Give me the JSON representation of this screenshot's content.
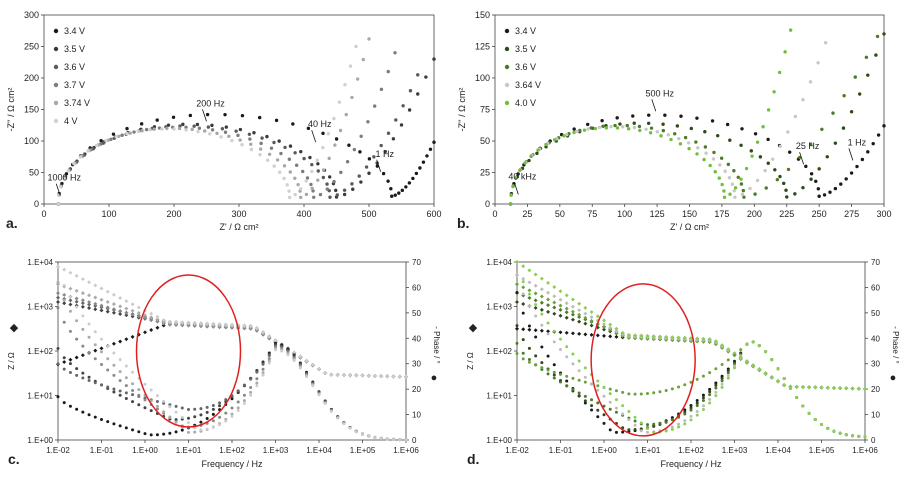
{
  "chart_data": [
    {
      "type": "scatter",
      "panel": "a",
      "panel_label": "a.",
      "xlabel": "Z' / Ω cm²",
      "ylabel": "-Z'' / Ω cm²",
      "xlim": [
        0,
        600
      ],
      "ylim": [
        0,
        300
      ],
      "xticks": [
        "0",
        "100",
        "200",
        "300",
        "400",
        "500",
        "600"
      ],
      "yticks": [
        "0",
        "50",
        "100",
        "150",
        "200",
        "250",
        "300"
      ],
      "legend": [
        {
          "label": "3.4 V",
          "color": "#1a1a1a"
        },
        {
          "label": "3.5 V",
          "color": "#3a3a3a"
        },
        {
          "label": "3.6 V",
          "color": "#5a5a5a"
        },
        {
          "label": "3.7 V",
          "color": "#7c7c7c"
        },
        {
          "label": "3.74 V",
          "color": "#a8a8a8"
        },
        {
          "label": "4 V",
          "color": "#d0d0d0"
        }
      ],
      "annotations": [
        {
          "text": "200 Hz",
          "x": 250,
          "y": 128
        },
        {
          "text": "40 Hz",
          "x": 418,
          "y": 95
        },
        {
          "text": "1 Hz",
          "x": 518,
          "y": 48
        },
        {
          "text": "1000 Hz",
          "x": 25,
          "y": 10
        }
      ],
      "series": [
        {
          "name": "3.4 V",
          "x0": 22,
          "x1": 535,
          "ymax": 155,
          "tail_end": [
            600,
            98
          ]
        },
        {
          "name": "3.5 V",
          "x0": 22,
          "x1": 450,
          "ymax": 138,
          "tail_end": [
            600,
            230
          ]
        },
        {
          "name": "3.6 V",
          "x0": 22,
          "x1": 440,
          "ymax": 135,
          "tail_end": [
            575,
            205
          ]
        },
        {
          "name": "3.7 V",
          "x0": 22,
          "x1": 415,
          "ymax": 133,
          "tail_end": [
            540,
            240
          ]
        },
        {
          "name": "3.74 V",
          "x0": 22,
          "x1": 395,
          "ymax": 131,
          "tail_end": [
            500,
            262
          ]
        },
        {
          "name": "4 V",
          "x0": 22,
          "x1": 378,
          "ymax": 130,
          "tail_end": [
            480,
            250
          ]
        }
      ]
    },
    {
      "type": "scatter",
      "panel": "b",
      "panel_label": "b.",
      "xlabel": "Z' / Ω cm²",
      "ylabel": "-Z'' / Ω cm²",
      "xlim": [
        0,
        300
      ],
      "ylim": [
        0,
        150
      ],
      "xticks": [
        "0",
        "25",
        "50",
        "75",
        "100",
        "125",
        "150",
        "175",
        "200",
        "225",
        "250",
        "275",
        "300"
      ],
      "yticks": [
        "0",
        "25",
        "50",
        "75",
        "100",
        "125",
        "150"
      ],
      "legend": [
        {
          "label": "3.4 V",
          "color": "#1a1a1a"
        },
        {
          "label": "3.5 V",
          "color": "#2e4a1a"
        },
        {
          "label": "3.6 V",
          "color": "#4e7a2a"
        },
        {
          "label": "3.64 V",
          "color": "#c8c8c8"
        },
        {
          "label": "4.0 V",
          "color": "#6fbf3a"
        }
      ],
      "annotations": [
        {
          "text": "500 Hz",
          "x": 124,
          "y": 72
        },
        {
          "text": "25 Hz",
          "x": 238,
          "y": 30
        },
        {
          "text": "1 Hz",
          "x": 276,
          "y": 33
        },
        {
          "text": "40 kHz",
          "x": 18,
          "y": 6
        }
      ],
      "series": [
        {
          "name": "3.4 V",
          "x0": 12,
          "x1": 250,
          "ymax": 77,
          "tail_end": [
            300,
            62
          ]
        },
        {
          "name": "3.5 V",
          "x0": 12,
          "x1": 225,
          "ymax": 70,
          "tail_end": [
            300,
            135
          ]
        },
        {
          "name": "3.6 V",
          "x0": 12,
          "x1": 192,
          "ymax": 68,
          "tail_end": [
            295,
            133
          ]
        },
        {
          "name": "3.64 V",
          "x0": 12,
          "x1": 185,
          "ymax": 67,
          "tail_end": [
            255,
            128
          ]
        },
        {
          "name": "4.0 V",
          "x0": 12,
          "x1": 177,
          "ymax": 66,
          "tail_end": [
            228,
            138
          ]
        }
      ]
    },
    {
      "type": "scatter",
      "panel": "c",
      "panel_label": "c.",
      "xlabel": "Frequency / Hz",
      "ylabel_left": "Z / Ω",
      "ylabel_right": "- Phase / °",
      "left_marker": "◆",
      "right_marker": "●",
      "xscale": "log",
      "xlim": [
        0.01,
        1000000
      ],
      "ylim_left": [
        1,
        10000
      ],
      "ylim_right": [
        0,
        70
      ],
      "xticks": [
        "1.E-02",
        "1.E-01",
        "1.E+00",
        "1.E+01",
        "1.E+02",
        "1.E+03",
        "1.E+04",
        "1.E+05",
        "1.E+06"
      ],
      "yticks_left": [
        "1.E+00",
        "1.E+01",
        "1.E+02",
        "1.E+03",
        "1.E+04"
      ],
      "yticks_right": [
        "0",
        "10",
        "20",
        "30",
        "40",
        "50",
        "60",
        "70"
      ],
      "highlight": {
        "shape": "ellipse",
        "color": "#e02020",
        "center_log_freq": 1.0,
        "center_log_z": 2.0
      }
    },
    {
      "type": "scatter",
      "panel": "d",
      "panel_label": "d.",
      "xlabel": "Frequency / Hz",
      "ylabel_left": "Z / Ω",
      "ylabel_right": "- Phase / °",
      "left_marker": "◆",
      "right_marker": "●",
      "xscale": "log",
      "xlim": [
        0.01,
        1000000
      ],
      "ylim_left": [
        1,
        10000
      ],
      "ylim_right": [
        0,
        70
      ],
      "xticks": [
        "1.E-02",
        "1.E-01",
        "1.E+00",
        "1.E+01",
        "1.E+02",
        "1.E+03",
        "1.E+04",
        "1.E+05",
        "1.E+06"
      ],
      "yticks_left": [
        "1.E+00",
        "1.E+01",
        "1.E+02",
        "1.E+03",
        "1.E+04"
      ],
      "yticks_right": [
        "0",
        "10",
        "20",
        "30",
        "40",
        "50",
        "60",
        "70"
      ],
      "highlight": {
        "shape": "ellipse",
        "color": "#e02020",
        "center_log_freq": 0.9,
        "center_log_z": 1.8
      }
    }
  ]
}
